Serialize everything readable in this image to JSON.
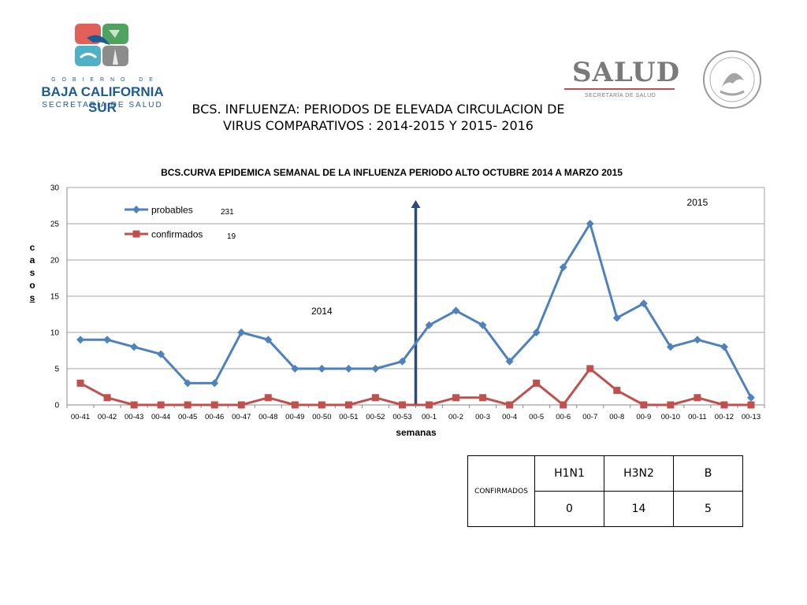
{
  "header": {
    "gov_line": "G O B I E R N O   D E",
    "state_name": "BAJA CALIFORNIA SUR",
    "secretariat": "SECRETARÍA DE SALUD",
    "salud_logo_text": "SALUD",
    "salud_logo_sub": "SECRETARÍA DE SALUD",
    "title_line1": "BCS. INFLUENZA: PERIODOS DE ELEVADA CIRCULACION DE",
    "title_line2": "VIRUS COMPARATIVOS : 2014-2015 Y 2015- 2016"
  },
  "chart_data": {
    "type": "line",
    "title": "BCS.CURVA EPIDEMICA SEMANAL DE LA INFLUENZA PERIODO ALTO OCTUBRE 2014 A MARZO 2015",
    "xlabel": "semanas",
    "ylabel": "casos",
    "ylabel_letters": [
      "c",
      "a",
      "s",
      "o",
      "s"
    ],
    "ylim": [
      0,
      30
    ],
    "yticks": [
      0,
      5,
      10,
      15,
      20,
      25,
      30
    ],
    "grid": true,
    "legend_position": "top-left",
    "categories": [
      "00-41",
      "00-42",
      "00-43",
      "00-44",
      "00-45",
      "00-46",
      "00-47",
      "00-48",
      "00-49",
      "00-50",
      "00-51",
      "00-52",
      "00-53",
      "00-1",
      "00-2",
      "00-3",
      "00-4",
      "00-5",
      "00-6",
      "00-7",
      "00-8",
      "00-9",
      "00-10",
      "00-11",
      "00-12",
      "00-13"
    ],
    "series": [
      {
        "name": "probables",
        "total_label": "231",
        "color": "#4F81BD",
        "marker": "diamond",
        "values": [
          9,
          9,
          8,
          7,
          3,
          3,
          10,
          9,
          5,
          5,
          5,
          5,
          6,
          11,
          13,
          11,
          6,
          10,
          19,
          25,
          12,
          14,
          8,
          9,
          8,
          1
        ]
      },
      {
        "name": "confirmados",
        "total_label": "19",
        "color": "#C0504D",
        "marker": "square",
        "values": [
          3,
          1,
          0,
          0,
          0,
          0,
          0,
          1,
          0,
          0,
          0,
          1,
          0,
          0,
          1,
          1,
          0,
          3,
          0,
          5,
          2,
          0,
          0,
          1,
          0,
          0
        ]
      }
    ],
    "annotations": [
      {
        "text": "2014",
        "category": "00-50",
        "y": 12.5
      },
      {
        "text": "2015",
        "category": "00-11",
        "y": 27.5
      }
    ],
    "divider": {
      "between": [
        "00-53",
        "00-1"
      ],
      "color": "#2E4A7A"
    }
  },
  "table": {
    "row_label": "CONFIRMADOS",
    "headers": [
      "H1N1",
      "H3N2",
      "B"
    ],
    "values": [
      "0",
      "14",
      "5"
    ]
  }
}
